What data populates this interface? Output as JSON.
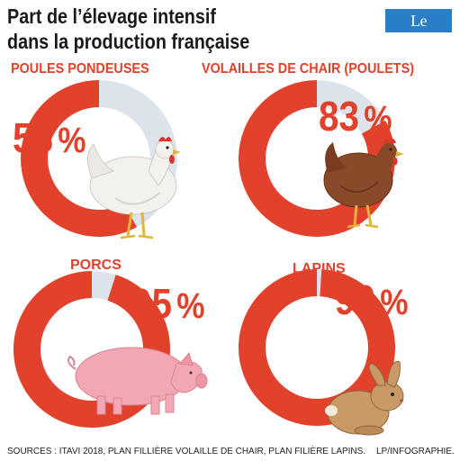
{
  "title_line1": "Part de l’élevage intensif",
  "title_line2": "dans la production française",
  "logo": "Le Parisien",
  "sources": "SOURCES : ITAVI 2018, PLAN FILLIÈRE VOLAILLE DE CHAIR, PLAN FILIÈRE LAPINS.",
  "credit": "LP/INFOGRAPHIE.",
  "colors": {
    "accent": "#e2412c",
    "track": "#dde3ea"
  },
  "icons": [
    "hen-icon",
    "chicken-icon",
    "pig-icon",
    "rabbit-icon"
  ],
  "chart_data": {
    "type": "pie",
    "title": "Part de l’élevage intensif dans la production française",
    "categories": [
      "POULES PONDEUSES",
      "VOLAILLES DE CHAIR (POULETS)",
      "PORCS",
      "LAPINS"
    ],
    "values": [
      58,
      83,
      95,
      99
    ],
    "value_labels": [
      "58",
      "83",
      "95",
      "99"
    ],
    "unit": "%"
  }
}
